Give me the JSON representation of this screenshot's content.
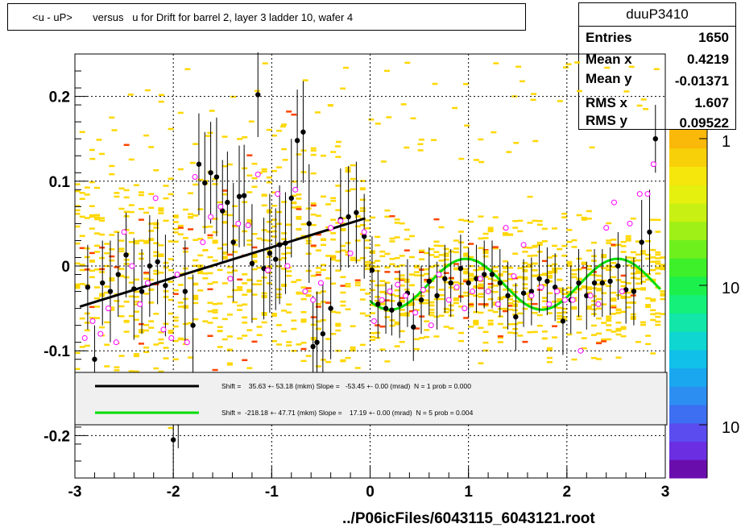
{
  "title": "<u - uP>       versus   u for Drift for barrel 2, layer 3 ladder 10, wafer 4",
  "stats": {
    "name": "duuP3410",
    "rows": [
      {
        "label": "Entries",
        "value": "1650"
      },
      {
        "label": "Mean x",
        "value": "0.4219"
      },
      {
        "label": "Mean y",
        "value": "-0.01371"
      },
      {
        "label": "RMS x",
        "value": "1.607"
      },
      {
        "label": "RMS y",
        "value": "0.09522"
      }
    ]
  },
  "footer": "../P06icFiles/6043115_6043121.root",
  "legend": {
    "entries": [
      {
        "text": "Shift =    35.63 +- 53.18 (mkm) Slope =   -53.45 +- 0.00 (mrad)  N = 1 prob = 0.000",
        "color": "#000000"
      },
      {
        "text": "Shift =  -218.18 +- 47.71 (mkm) Slope =    17.19 +- 0.00 (mrad)  N = 5 prob = 0.004",
        "color": "#00dd00"
      }
    ]
  },
  "palette_labels": [
    "1",
    "10",
    "10"
  ],
  "chart_data": {
    "type": "scatter",
    "title": "<u - uP>       versus   u for Drift for barrel 2, layer 3 ladder 10, wafer 4",
    "xlim": [
      -3,
      3
    ],
    "ylim": [
      -0.25,
      0.25
    ],
    "x_ticks": [
      -3,
      -2,
      -1,
      0,
      1,
      2,
      3
    ],
    "y_ticks": [
      -0.2,
      -0.1,
      0,
      0.1,
      0.2
    ],
    "y_tick_labels": [
      "-0.2",
      "-0.1",
      "0",
      "0.1",
      "0.2"
    ],
    "grid": true,
    "colors": {
      "profile": "#000000",
      "mean": "#ff00ff",
      "fit1": "#000000",
      "fit2": "#00dd00",
      "cells": "#ffd700",
      "hot_cells": "#ff4400"
    },
    "profile_points": [
      {
        "x": -2.87,
        "y": -0.025,
        "e": 0.05
      },
      {
        "x": -2.8,
        "y": -0.11,
        "e": 0.04
      },
      {
        "x": -2.72,
        "y": -0.02,
        "e": 0.05
      },
      {
        "x": -2.64,
        "y": -0.03,
        "e": 0.06
      },
      {
        "x": -2.56,
        "y": -0.01,
        "e": 0.05
      },
      {
        "x": -2.48,
        "y": 0.013,
        "e": 0.05
      },
      {
        "x": -2.4,
        "y": -0.027,
        "e": 0.06
      },
      {
        "x": -2.32,
        "y": -0.03,
        "e": 0.05
      },
      {
        "x": -2.24,
        "y": 0.0,
        "e": 0.06
      },
      {
        "x": -2.16,
        "y": 0.005,
        "e": 0.05
      },
      {
        "x": -2.08,
        "y": -0.023,
        "e": 0.06
      },
      {
        "x": -2.0,
        "y": -0.205,
        "e": 0.03
      },
      {
        "x": -1.95,
        "y": -0.185,
        "e": 0.03
      },
      {
        "x": -1.88,
        "y": -0.03,
        "e": 0.06
      },
      {
        "x": -1.8,
        "y": -0.07,
        "e": 0.06
      },
      {
        "x": -1.74,
        "y": 0.12,
        "e": 0.06
      },
      {
        "x": -1.68,
        "y": 0.098,
        "e": 0.06
      },
      {
        "x": -1.62,
        "y": 0.11,
        "e": 0.06
      },
      {
        "x": -1.56,
        "y": 0.105,
        "e": 0.07
      },
      {
        "x": -1.5,
        "y": 0.065,
        "e": 0.06
      },
      {
        "x": -1.45,
        "y": 0.075,
        "e": 0.06
      },
      {
        "x": -1.39,
        "y": 0.028,
        "e": 0.07
      },
      {
        "x": -1.33,
        "y": 0.082,
        "e": 0.06
      },
      {
        "x": -1.28,
        "y": 0.083,
        "e": 0.06
      },
      {
        "x": -1.2,
        "y": 0.003,
        "e": 0.07
      },
      {
        "x": -1.14,
        "y": 0.202,
        "e": 0.05
      },
      {
        "x": -1.08,
        "y": -0.003,
        "e": 0.06
      },
      {
        "x": -1.02,
        "y": 0.015,
        "e": 0.07
      },
      {
        "x": -0.96,
        "y": 0.008,
        "e": 0.06
      },
      {
        "x": -0.92,
        "y": 0.025,
        "e": 0.07
      },
      {
        "x": -0.86,
        "y": 0.027,
        "e": 0.06
      },
      {
        "x": -0.8,
        "y": 0.08,
        "e": 0.07
      },
      {
        "x": -0.74,
        "y": 0.148,
        "e": 0.06
      },
      {
        "x": -0.68,
        "y": 0.158,
        "e": 0.06
      },
      {
        "x": -0.62,
        "y": 0.05,
        "e": 0.07
      },
      {
        "x": -0.58,
        "y": -0.095,
        "e": 0.06
      },
      {
        "x": -0.54,
        "y": -0.09,
        "e": 0.06
      },
      {
        "x": -0.48,
        "y": -0.08,
        "e": 0.06
      },
      {
        "x": -0.4,
        "y": -0.05,
        "e": 0.06
      },
      {
        "x": -0.3,
        "y": 0.055,
        "e": 0.06
      },
      {
        "x": -0.22,
        "y": 0.058,
        "e": 0.06
      },
      {
        "x": -0.14,
        "y": 0.063,
        "e": 0.06
      },
      {
        "x": -0.06,
        "y": 0.035,
        "e": 0.05
      },
      {
        "x": 0.02,
        "y": -0.005,
        "e": 0.04
      },
      {
        "x": 0.08,
        "y": -0.045,
        "e": 0.04
      },
      {
        "x": 0.16,
        "y": -0.05,
        "e": 0.03
      },
      {
        "x": 0.22,
        "y": -0.052,
        "e": 0.03
      },
      {
        "x": 0.3,
        "y": -0.045,
        "e": 0.04
      },
      {
        "x": 0.38,
        "y": -0.032,
        "e": 0.04
      },
      {
        "x": 0.44,
        "y": -0.072,
        "e": 0.04
      },
      {
        "x": 0.52,
        "y": -0.04,
        "e": 0.04
      },
      {
        "x": 0.6,
        "y": -0.018,
        "e": 0.04
      },
      {
        "x": 0.68,
        "y": -0.035,
        "e": 0.04
      },
      {
        "x": 0.76,
        "y": -0.015,
        "e": 0.04
      },
      {
        "x": 0.82,
        "y": -0.02,
        "e": 0.04
      },
      {
        "x": 0.92,
        "y": -0.003,
        "e": 0.04
      },
      {
        "x": 1.0,
        "y": -0.02,
        "e": 0.04
      },
      {
        "x": 1.08,
        "y": -0.015,
        "e": 0.04
      },
      {
        "x": 1.16,
        "y": -0.01,
        "e": 0.04
      },
      {
        "x": 1.24,
        "y": -0.01,
        "e": 0.04
      },
      {
        "x": 1.32,
        "y": -0.02,
        "e": 0.04
      },
      {
        "x": 1.4,
        "y": -0.035,
        "e": 0.04
      },
      {
        "x": 1.48,
        "y": -0.06,
        "e": 0.04
      },
      {
        "x": 1.56,
        "y": -0.032,
        "e": 0.04
      },
      {
        "x": 1.64,
        "y": -0.03,
        "e": 0.04
      },
      {
        "x": 1.72,
        "y": -0.015,
        "e": 0.04
      },
      {
        "x": 1.8,
        "y": -0.018,
        "e": 0.04
      },
      {
        "x": 1.88,
        "y": -0.025,
        "e": 0.04
      },
      {
        "x": 1.96,
        "y": -0.065,
        "e": 0.04
      },
      {
        "x": 2.04,
        "y": -0.04,
        "e": 0.04
      },
      {
        "x": 2.12,
        "y": -0.02,
        "e": 0.04
      },
      {
        "x": 2.2,
        "y": -0.035,
        "e": 0.04
      },
      {
        "x": 2.28,
        "y": -0.02,
        "e": 0.04
      },
      {
        "x": 2.36,
        "y": -0.02,
        "e": 0.04
      },
      {
        "x": 2.44,
        "y": -0.018,
        "e": 0.04
      },
      {
        "x": 2.52,
        "y": 0.0,
        "e": 0.04
      },
      {
        "x": 2.6,
        "y": -0.028,
        "e": 0.04
      },
      {
        "x": 2.68,
        "y": -0.03,
        "e": 0.04
      },
      {
        "x": 2.76,
        "y": 0.028,
        "e": 0.05
      },
      {
        "x": 2.84,
        "y": 0.04,
        "e": 0.05
      },
      {
        "x": 2.9,
        "y": 0.15,
        "e": 0.04
      }
    ],
    "mean_points": [
      {
        "x": -2.9,
        "y": -0.085
      },
      {
        "x": -2.82,
        "y": -0.065
      },
      {
        "x": -2.74,
        "y": -0.08
      },
      {
        "x": -2.66,
        "y": -0.05
      },
      {
        "x": -2.58,
        "y": -0.09
      },
      {
        "x": -2.5,
        "y": 0.04
      },
      {
        "x": -2.42,
        "y": 0.0
      },
      {
        "x": -2.34,
        "y": -0.045
      },
      {
        "x": -2.26,
        "y": -0.02
      },
      {
        "x": -2.18,
        "y": 0.08
      },
      {
        "x": -2.1,
        "y": -0.075
      },
      {
        "x": -2.02,
        "y": -0.085
      },
      {
        "x": -1.96,
        "y": -0.01
      },
      {
        "x": -1.86,
        "y": -0.09
      },
      {
        "x": -1.78,
        "y": 0.105
      },
      {
        "x": -1.7,
        "y": 0.028
      },
      {
        "x": -1.62,
        "y": 0.058
      },
      {
        "x": -1.52,
        "y": 0.07
      },
      {
        "x": -1.42,
        "y": -0.015
      },
      {
        "x": -1.34,
        "y": 0.05
      },
      {
        "x": -1.24,
        "y": 0.048
      },
      {
        "x": -1.14,
        "y": 0.108
      },
      {
        "x": -1.04,
        "y": -0.005
      },
      {
        "x": -0.94,
        "y": 0.085
      },
      {
        "x": -0.84,
        "y": 0.0
      },
      {
        "x": -0.76,
        "y": 0.09
      },
      {
        "x": -0.66,
        "y": -0.03
      },
      {
        "x": -0.58,
        "y": -0.04
      },
      {
        "x": -0.5,
        "y": -0.02
      },
      {
        "x": -0.4,
        "y": 0.045
      },
      {
        "x": -0.3,
        "y": 0.053
      },
      {
        "x": -0.2,
        "y": 0.015
      },
      {
        "x": -0.06,
        "y": 0.04
      },
      {
        "x": 0.04,
        "y": -0.065
      },
      {
        "x": 0.12,
        "y": -0.04
      },
      {
        "x": 0.2,
        "y": -0.03
      },
      {
        "x": 0.28,
        "y": -0.022
      },
      {
        "x": 0.36,
        "y": -0.035
      },
      {
        "x": 0.46,
        "y": -0.055
      },
      {
        "x": 0.54,
        "y": -0.028
      },
      {
        "x": 0.62,
        "y": -0.07
      },
      {
        "x": 0.7,
        "y": -0.01
      },
      {
        "x": 0.8,
        "y": -0.04
      },
      {
        "x": 0.88,
        "y": -0.025
      },
      {
        "x": 0.96,
        "y": -0.05
      },
      {
        "x": 1.04,
        "y": -0.03
      },
      {
        "x": 1.12,
        "y": -0.015
      },
      {
        "x": 1.2,
        "y": -0.03
      },
      {
        "x": 1.3,
        "y": -0.045
      },
      {
        "x": 1.38,
        "y": 0.045
      },
      {
        "x": 1.46,
        "y": -0.012
      },
      {
        "x": 1.56,
        "y": 0.025
      },
      {
        "x": 1.64,
        "y": -0.035
      },
      {
        "x": 1.74,
        "y": -0.025
      },
      {
        "x": 1.82,
        "y": -0.045
      },
      {
        "x": 1.9,
        "y": -0.03
      },
      {
        "x": 1.98,
        "y": -0.04
      },
      {
        "x": 2.06,
        "y": -0.04
      },
      {
        "x": 2.14,
        "y": -0.1
      },
      {
        "x": 2.24,
        "y": -0.035
      },
      {
        "x": 2.32,
        "y": -0.045
      },
      {
        "x": 2.4,
        "y": 0.045
      },
      {
        "x": 2.48,
        "y": 0.075
      },
      {
        "x": 2.56,
        "y": -0.03
      },
      {
        "x": 2.64,
        "y": 0.05
      },
      {
        "x": 2.74,
        "y": 0.085
      },
      {
        "x": 2.82,
        "y": 0.085
      },
      {
        "x": 2.88,
        "y": 0.12
      }
    ],
    "fit_lines": [
      {
        "type": "linear",
        "x_range": [
          -2.95,
          -0.05
        ],
        "slope": 0.0359,
        "intercept": 0.058
      },
      {
        "type": "sine",
        "x_range": [
          0.0,
          2.95
        ],
        "offset": -0.0215,
        "amplitude": 0.03,
        "period": 1.54,
        "phase_x": 0.59
      }
    ],
    "palette": {
      "labels": [
        "1",
        "10",
        "10"
      ]
    }
  }
}
